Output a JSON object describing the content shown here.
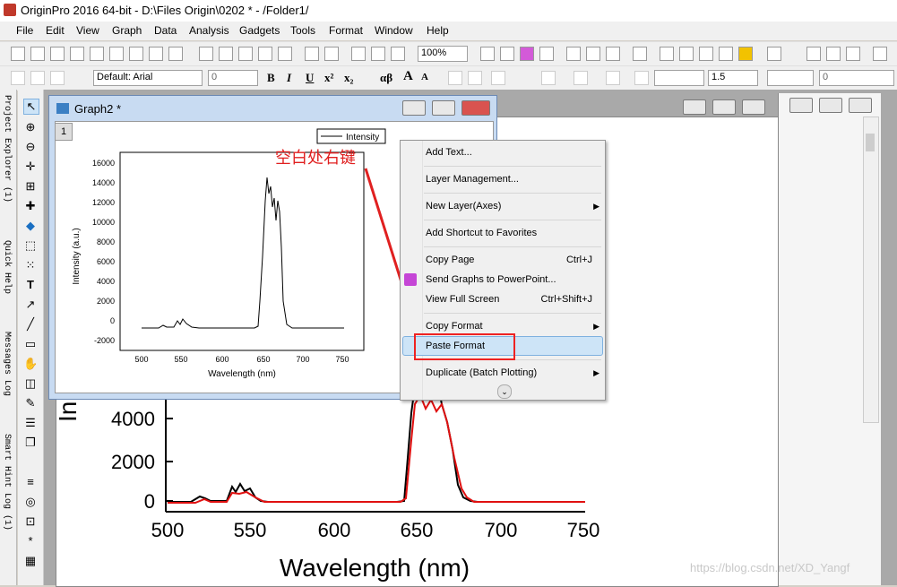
{
  "app": {
    "title": "OriginPro 2016 64-bit - D:\\Files Origin\\0202 * - /Folder1/"
  },
  "menu": {
    "items": [
      "File",
      "Edit",
      "View",
      "Graph",
      "Data",
      "Analysis",
      "Gadgets",
      "Tools",
      "Format",
      "Window",
      "Help"
    ]
  },
  "toolbar": {
    "zoom_value": "100%",
    "font_value": "Default: Arial",
    "size_value": "0",
    "line_width_value": "1.5",
    "last_value": "0",
    "bold_label": "B",
    "italic_label": "I",
    "underline_label": "U",
    "sup_label": "x²",
    "sub_label": "x₂",
    "greek_label": "αβ",
    "grow_label": "A",
    "shrink_label": "A"
  },
  "left_dock": {
    "tabs": [
      "Project Explorer (1)",
      "Quick Help",
      "Messages Log",
      "Smart Hint Log (1)"
    ]
  },
  "graph_window": {
    "title": "Graph2 *",
    "layer_number": "1",
    "legend_label": "Intensity",
    "ylabel": "Intensity (a.u.)",
    "xlabel": "Wavelength (nm)",
    "yticks": [
      "16000",
      "14000",
      "12000",
      "10000",
      "8000",
      "6000",
      "4000",
      "2000",
      "0",
      "-2000"
    ],
    "xticks": [
      "500",
      "550",
      "600",
      "650",
      "700",
      "750"
    ]
  },
  "background_graph": {
    "yticks": [
      "4000",
      "2000",
      "0"
    ],
    "xticks": [
      "500",
      "550",
      "600",
      "650",
      "700",
      "750"
    ],
    "xlabel": "Wavelength (nm)",
    "ylabel_partial": "In"
  },
  "context_menu": {
    "items": [
      {
        "label": "Add Text...",
        "shortcut": ""
      },
      {
        "label": "Layer Management...",
        "shortcut": ""
      },
      {
        "label": "New Layer(Axes)",
        "shortcut": "▶"
      },
      {
        "label": "Add Shortcut to Favorites",
        "shortcut": ""
      },
      {
        "label": "Copy Page",
        "shortcut": "Ctrl+J"
      },
      {
        "label": "Send Graphs to PowerPoint...",
        "shortcut": ""
      },
      {
        "label": "View Full Screen",
        "shortcut": "Ctrl+Shift+J"
      },
      {
        "label": "Copy Format",
        "shortcut": "▶"
      },
      {
        "label": "Paste Format",
        "shortcut": ""
      },
      {
        "label": "Duplicate (Batch Plotting)",
        "shortcut": "▶"
      }
    ],
    "more_icon": "chevron-double-down-icon"
  },
  "annotation": {
    "text": "空白处右键",
    "color": "#e02020"
  },
  "watermark": "https://blog.csdn.net/XD_Yangf"
}
